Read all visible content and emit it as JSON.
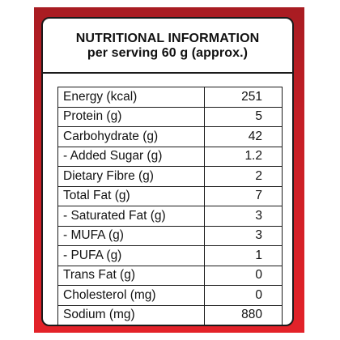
{
  "label": {
    "title": "NUTRITIONAL INFORMATION",
    "subtitle": "per serving 60 g (approx.)",
    "rows": [
      {
        "nutrient": "Energy (kcal)",
        "value": "251"
      },
      {
        "nutrient": "Protein (g)",
        "value": "5"
      },
      {
        "nutrient": "Carbohydrate (g)",
        "value": "42"
      },
      {
        "nutrient": " - Added Sugar (g)",
        "value": "1.2"
      },
      {
        "nutrient": "Dietary Fibre (g)",
        "value": "2"
      },
      {
        "nutrient": "Total Fat (g)",
        "value": "7"
      },
      {
        "nutrient": " - Saturated Fat (g)",
        "value": "3"
      },
      {
        "nutrient": " - MUFA (g)",
        "value": "3"
      },
      {
        "nutrient": " - PUFA (g)",
        "value": "1"
      },
      {
        "nutrient": "Trans Fat (g)",
        "value": "0"
      },
      {
        "nutrient": "Cholesterol (mg)",
        "value": "0"
      },
      {
        "nutrient": "Sodium (mg)",
        "value": "880"
      }
    ]
  },
  "colors": {
    "packaging_red": "#e32229",
    "packaging_dark_red": "#a81c22",
    "ink": "#111111"
  }
}
